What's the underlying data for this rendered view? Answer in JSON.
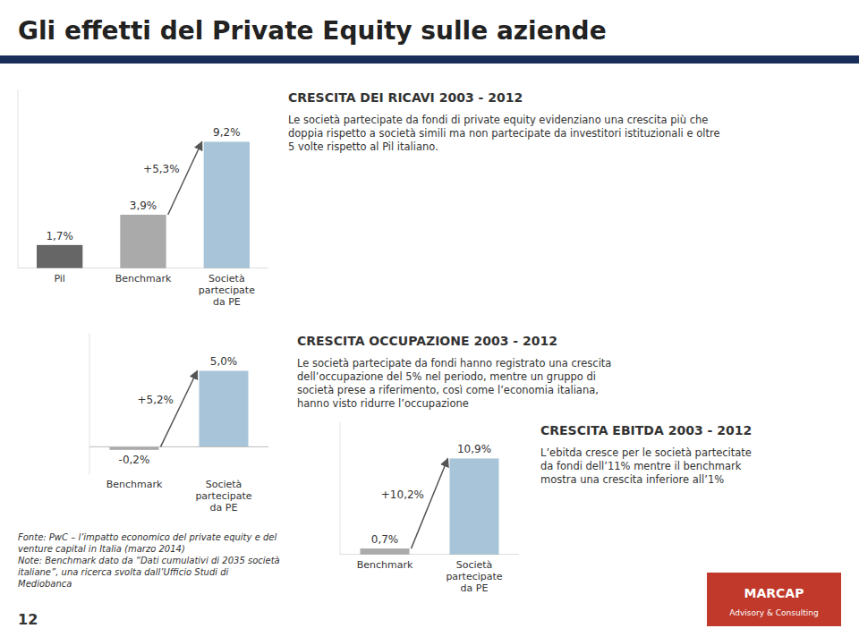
{
  "title": "Gli effetti del Private Equity sulle aziende",
  "separator": {
    "color": "#1a2e5a"
  },
  "chart_data": [
    {
      "type": "bar",
      "title": "CRESCITA DEI RICAVI 2003 - 2012",
      "description": "Le società partecipate da fondi di private equity evidenziano una crescita più che\ndoppia rispetto a società simili ma non partecipate da investitori istituzionali e oltre\n5 volte rispetto al Pil italiano.",
      "categories": [
        "Pil",
        "Benchmark",
        "Società\npartecipate\nda PE"
      ],
      "values": [
        1.7,
        3.9,
        9.2
      ],
      "value_labels": [
        "1,7%",
        "3,9%",
        "9,2%"
      ],
      "colors": [
        "#666666",
        "#aaaaaa",
        "#a8c4d8"
      ],
      "annotation": "+5,3%",
      "ylim": [
        0,
        13
      ],
      "data_labels": true,
      "tick_labels": "x"
    },
    {
      "type": "bar",
      "title": "CRESCITA OCCUPAZIONE 2003 - 2012",
      "description": "Le società partecipate da fondi hanno registrato una crescita\ndell’occupazione del 5% nel periodo, mentre un gruppo di\nsocietà prese a riferimento, così come l’economia italiana,\nhanno visto ridurre l’occupazione",
      "categories": [
        "Benchmark",
        "Società\npartecipate\nda PE"
      ],
      "values": [
        -0.2,
        5.0
      ],
      "value_labels": [
        "-0,2%",
        "5,0%"
      ],
      "colors": [
        "#aaaaaa",
        "#a8c4d8"
      ],
      "annotation": "+5,2%",
      "ylim": [
        -1.8,
        7.5
      ],
      "data_labels": true,
      "tick_labels": "x"
    },
    {
      "type": "bar",
      "title": "CRESCITA EBITDA 2003 - 2012",
      "description": "L’ebitda cresce per le società partecitate\nda fondi dell’11% mentre il benchmark\nmostra una crescita inferiore all’1%",
      "categories": [
        "Benchmark",
        "Società\npartecipate\nda PE"
      ],
      "values": [
        0.7,
        10.9
      ],
      "value_labels": [
        "0,7%",
        "10,9%"
      ],
      "colors": [
        "#aaaaaa",
        "#a8c4d8"
      ],
      "annotation": "+10,2%",
      "ylim": [
        0,
        15
      ],
      "data_labels": true,
      "tick_labels": "x"
    }
  ],
  "footer": "Fonte: PwC – l’impatto economico del private equity e del\nventure capital in Italia (marzo 2014)\nNote: Benchmark dato da “Dati cumulativi di 2035 società\nitaliane”, una ricerca svolta dall’Ufficio Studi di\nMediobanca",
  "page_number": "12",
  "logo": {
    "title": "MARCAP",
    "subtitle": "Advisory & Consulting",
    "color": "#c0392b"
  }
}
